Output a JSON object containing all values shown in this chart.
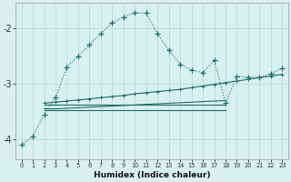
{
  "xlabel": "Humidex (Indice chaleur)",
  "bg_color": "#d8f0ee",
  "grid_color": "#b8dbd8",
  "line_color": "#1e6b68",
  "x_ticks": [
    0,
    1,
    2,
    3,
    4,
    5,
    6,
    7,
    8,
    9,
    10,
    11,
    12,
    13,
    14,
    15,
    16,
    17,
    18,
    19,
    20,
    21,
    22,
    23
  ],
  "ylim": [
    -4.35,
    -1.55
  ],
  "xlim": [
    -0.5,
    23.5
  ],
  "yticks": [
    -4,
    -3,
    -2
  ],
  "ytick_labels": [
    "-4",
    "-3",
    "-2"
  ],
  "series1_x": [
    0,
    1,
    2,
    3,
    4,
    5,
    6,
    7,
    8,
    9,
    10,
    11,
    12,
    13,
    14,
    15,
    16,
    17,
    18,
    19,
    20,
    21,
    22,
    23
  ],
  "series1_y": [
    -4.1,
    -3.95,
    -3.55,
    -3.25,
    -2.7,
    -2.5,
    -2.3,
    -2.1,
    -1.9,
    -1.8,
    -1.72,
    -1.73,
    -2.1,
    -2.4,
    -2.65,
    -2.75,
    -2.8,
    -2.58,
    -3.35,
    -2.87,
    -2.88,
    -2.88,
    -2.82,
    -2.72
  ],
  "series2_x": [
    2,
    3,
    4,
    5,
    6,
    7,
    8,
    9,
    10,
    11,
    12,
    13,
    14,
    15,
    16,
    17,
    18,
    19,
    20,
    21,
    22,
    23
  ],
  "series2_y": [
    -3.35,
    -3.33,
    -3.31,
    -3.29,
    -3.27,
    -3.25,
    -3.23,
    -3.21,
    -3.18,
    -3.16,
    -3.14,
    -3.12,
    -3.1,
    -3.07,
    -3.04,
    -3.01,
    -2.98,
    -2.95,
    -2.92,
    -2.89,
    -2.86,
    -2.83
  ],
  "series3_x": [
    2,
    3,
    18
  ],
  "series3_y": [
    -3.38,
    -3.38,
    -3.38
  ],
  "series4_x": [
    2,
    3,
    4,
    5,
    6,
    7,
    8,
    9,
    10,
    11,
    12,
    13,
    14,
    15,
    16,
    17,
    18
  ],
  "series4_y": [
    -3.45,
    -3.45,
    -3.44,
    -3.43,
    -3.42,
    -3.41,
    -3.4,
    -3.39,
    -3.38,
    -3.37,
    -3.36,
    -3.35,
    -3.34,
    -3.33,
    -3.32,
    -3.31,
    -3.3
  ],
  "series5_x": [
    2,
    18
  ],
  "series5_y": [
    -3.48,
    -3.48
  ]
}
